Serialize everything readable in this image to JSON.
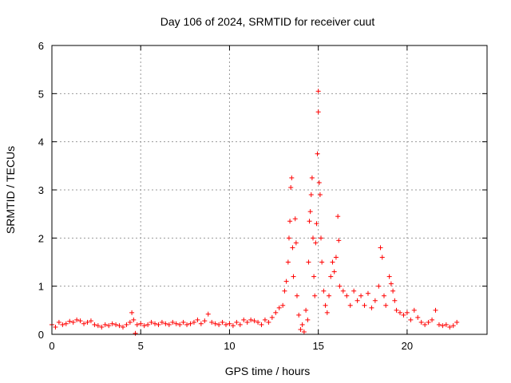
{
  "chart_data": {
    "type": "scatter",
    "title": "Day 106 of 2024, SRMTID for receiver cuut",
    "xlabel": "GPS time / hours",
    "ylabel": "SRMTID / TECUs",
    "xlim": [
      0,
      24.5
    ],
    "ylim": [
      0,
      6
    ],
    "xticks": [
      0,
      5,
      10,
      15,
      20
    ],
    "yticks": [
      0,
      1,
      2,
      3,
      4,
      5,
      6
    ],
    "grid": true,
    "marker": "+",
    "marker_color": "#ff0000",
    "series": [
      {
        "name": "SRMTID",
        "points": [
          [
            0.0,
            0.2
          ],
          [
            0.2,
            0.15
          ],
          [
            0.4,
            0.25
          ],
          [
            0.6,
            0.2
          ],
          [
            0.8,
            0.22
          ],
          [
            1.0,
            0.27
          ],
          [
            1.2,
            0.25
          ],
          [
            1.4,
            0.3
          ],
          [
            1.6,
            0.28
          ],
          [
            1.8,
            0.22
          ],
          [
            2.0,
            0.25
          ],
          [
            2.2,
            0.28
          ],
          [
            2.4,
            0.2
          ],
          [
            2.6,
            0.18
          ],
          [
            2.8,
            0.15
          ],
          [
            3.0,
            0.2
          ],
          [
            3.2,
            0.18
          ],
          [
            3.4,
            0.22
          ],
          [
            3.6,
            0.2
          ],
          [
            3.8,
            0.18
          ],
          [
            4.0,
            0.15
          ],
          [
            4.2,
            0.2
          ],
          [
            4.4,
            0.25
          ],
          [
            4.5,
            0.45
          ],
          [
            4.6,
            0.3
          ],
          [
            4.7,
            0.02
          ],
          [
            4.8,
            0.2
          ],
          [
            5.0,
            0.22
          ],
          [
            5.2,
            0.18
          ],
          [
            5.4,
            0.2
          ],
          [
            5.6,
            0.25
          ],
          [
            5.8,
            0.22
          ],
          [
            6.0,
            0.2
          ],
          [
            6.2,
            0.25
          ],
          [
            6.4,
            0.22
          ],
          [
            6.6,
            0.2
          ],
          [
            6.8,
            0.25
          ],
          [
            7.0,
            0.22
          ],
          [
            7.2,
            0.2
          ],
          [
            7.4,
            0.25
          ],
          [
            7.6,
            0.2
          ],
          [
            7.8,
            0.22
          ],
          [
            8.0,
            0.25
          ],
          [
            8.2,
            0.3
          ],
          [
            8.4,
            0.22
          ],
          [
            8.6,
            0.28
          ],
          [
            8.8,
            0.42
          ],
          [
            9.0,
            0.25
          ],
          [
            9.2,
            0.22
          ],
          [
            9.4,
            0.2
          ],
          [
            9.6,
            0.25
          ],
          [
            9.8,
            0.2
          ],
          [
            10.0,
            0.22
          ],
          [
            10.2,
            0.18
          ],
          [
            10.4,
            0.25
          ],
          [
            10.6,
            0.2
          ],
          [
            10.8,
            0.3
          ],
          [
            11.0,
            0.25
          ],
          [
            11.2,
            0.3
          ],
          [
            11.4,
            0.28
          ],
          [
            11.6,
            0.25
          ],
          [
            11.8,
            0.2
          ],
          [
            12.0,
            0.3
          ],
          [
            12.2,
            0.25
          ],
          [
            12.4,
            0.35
          ],
          [
            12.6,
            0.45
          ],
          [
            12.8,
            0.55
          ],
          [
            13.0,
            0.6
          ],
          [
            13.1,
            0.9
          ],
          [
            13.2,
            1.1
          ],
          [
            13.3,
            1.5
          ],
          [
            13.35,
            2.0
          ],
          [
            13.4,
            2.35
          ],
          [
            13.45,
            3.05
          ],
          [
            13.5,
            3.25
          ],
          [
            13.55,
            1.8
          ],
          [
            13.6,
            1.2
          ],
          [
            13.7,
            2.4
          ],
          [
            13.75,
            1.9
          ],
          [
            13.8,
            0.8
          ],
          [
            13.9,
            0.4
          ],
          [
            14.0,
            0.1
          ],
          [
            14.1,
            0.2
          ],
          [
            14.2,
            0.05
          ],
          [
            14.3,
            0.5
          ],
          [
            14.4,
            0.3
          ],
          [
            14.45,
            1.5
          ],
          [
            14.5,
            2.35
          ],
          [
            14.55,
            2.55
          ],
          [
            14.6,
            2.9
          ],
          [
            14.65,
            3.25
          ],
          [
            14.7,
            2.0
          ],
          [
            14.75,
            1.2
          ],
          [
            14.8,
            0.8
          ],
          [
            14.85,
            1.9
          ],
          [
            14.9,
            2.3
          ],
          [
            14.95,
            3.75
          ],
          [
            15.0,
            5.05
          ],
          [
            15.0,
            4.62
          ],
          [
            15.05,
            3.15
          ],
          [
            15.1,
            2.9
          ],
          [
            15.15,
            2.0
          ],
          [
            15.2,
            1.5
          ],
          [
            15.3,
            0.9
          ],
          [
            15.4,
            0.6
          ],
          [
            15.5,
            0.45
          ],
          [
            15.6,
            0.8
          ],
          [
            15.7,
            1.2
          ],
          [
            15.8,
            1.5
          ],
          [
            15.9,
            1.3
          ],
          [
            16.0,
            1.6
          ],
          [
            16.1,
            2.45
          ],
          [
            16.15,
            1.95
          ],
          [
            16.2,
            1.0
          ],
          [
            16.4,
            0.9
          ],
          [
            16.6,
            0.8
          ],
          [
            16.8,
            0.6
          ],
          [
            17.0,
            0.9
          ],
          [
            17.2,
            0.7
          ],
          [
            17.4,
            0.8
          ],
          [
            17.6,
            0.6
          ],
          [
            17.8,
            0.85
          ],
          [
            18.0,
            0.55
          ],
          [
            18.2,
            0.7
          ],
          [
            18.4,
            1.0
          ],
          [
            18.5,
            1.8
          ],
          [
            18.6,
            1.6
          ],
          [
            18.7,
            0.8
          ],
          [
            18.8,
            0.6
          ],
          [
            19.0,
            1.2
          ],
          [
            19.1,
            1.05
          ],
          [
            19.2,
            0.9
          ],
          [
            19.3,
            0.7
          ],
          [
            19.4,
            0.5
          ],
          [
            19.6,
            0.45
          ],
          [
            19.8,
            0.4
          ],
          [
            20.0,
            0.45
          ],
          [
            20.2,
            0.3
          ],
          [
            20.4,
            0.5
          ],
          [
            20.6,
            0.35
          ],
          [
            20.8,
            0.25
          ],
          [
            21.0,
            0.2
          ],
          [
            21.2,
            0.25
          ],
          [
            21.4,
            0.3
          ],
          [
            21.6,
            0.5
          ],
          [
            21.8,
            0.2
          ],
          [
            22.0,
            0.18
          ],
          [
            22.2,
            0.2
          ],
          [
            22.4,
            0.15
          ],
          [
            22.6,
            0.18
          ],
          [
            22.8,
            0.25
          ]
        ]
      }
    ]
  }
}
